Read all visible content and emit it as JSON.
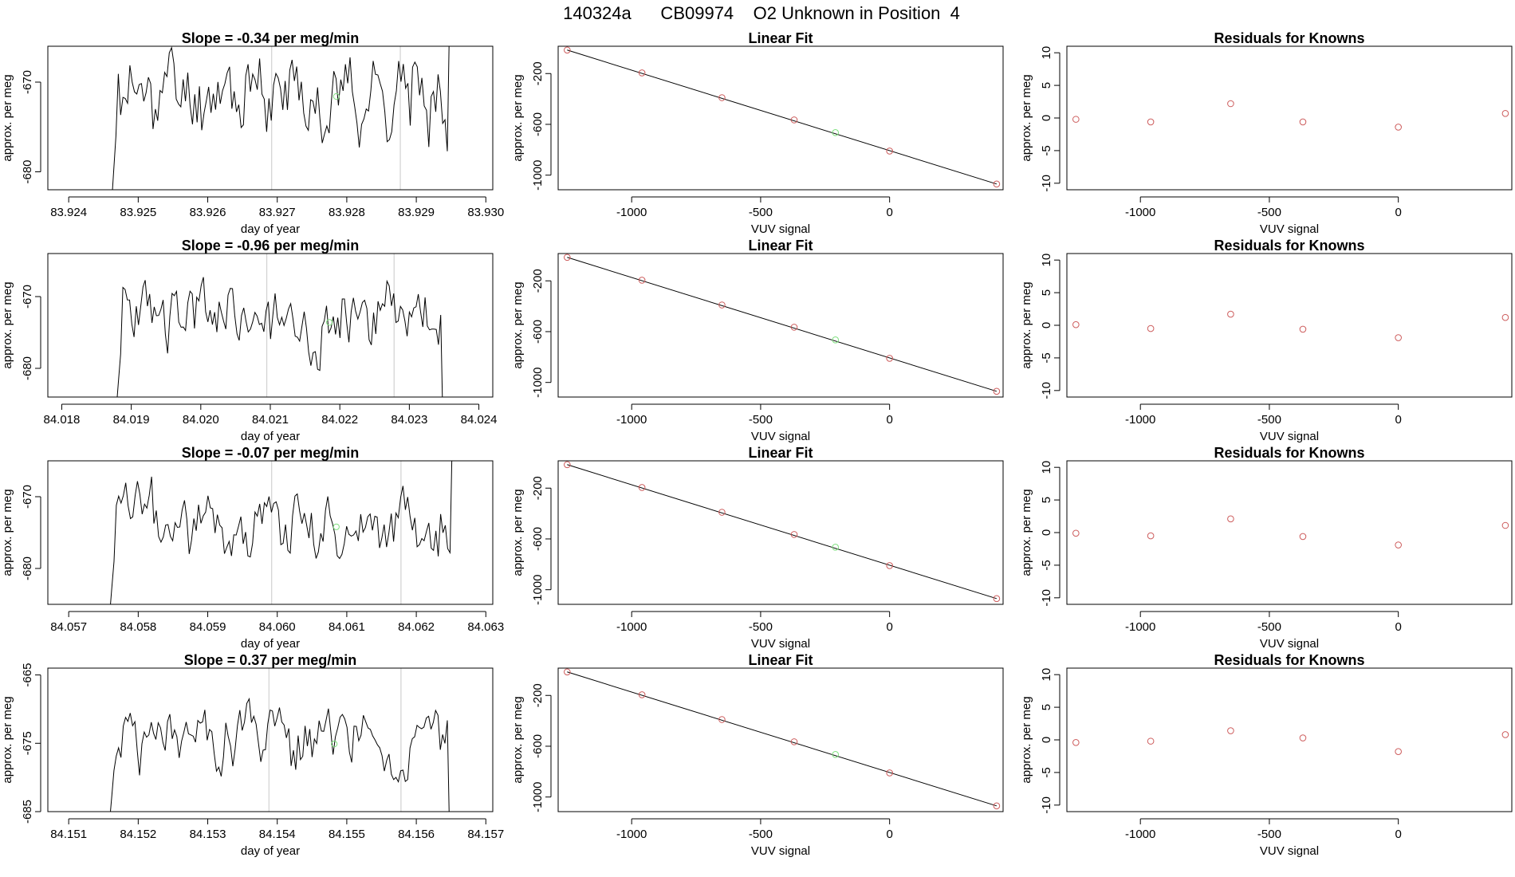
{
  "title": "140324a      CB09974    O2 Unknown in Position  4",
  "colors": {
    "line": "#000000",
    "known": "#cd5c5c",
    "unknown": "#7ee07e",
    "vline": "#c8c8c8",
    "frame": "#000000"
  },
  "chart_data": [
    {
      "type": "line",
      "title": "Slope =  -0.34  per meg/min",
      "xlabel": "day of year",
      "ylabel": "approx. per meg",
      "xlim": [
        83.9237,
        83.9301
      ],
      "ylim": [
        -682,
        -666
      ],
      "xticks": [
        "83.924",
        "83.925",
        "83.926",
        "83.927",
        "83.928",
        "83.929",
        "83.930"
      ],
      "yticks": [
        "-680",
        "-670"
      ],
      "vlines": [
        83.92692,
        83.92877
      ],
      "unknown_point": [
        83.92785,
        -671.6
      ],
      "series_range": [
        83.92458,
        83.92958
      ],
      "series_seed": 11,
      "series_mean": -671.3
    },
    {
      "type": "scatter",
      "title": "Linear Fit",
      "xlabel": "VUV signal",
      "ylabel": "approx. per meg",
      "xlim": [
        -1285,
        440
      ],
      "ylim": [
        -1115,
        15
      ],
      "xticks": [
        "-1000",
        "-500",
        "0"
      ],
      "yticks": [
        "-1000",
        "-600",
        "-200"
      ],
      "known_x": [
        -1250,
        -960,
        -650,
        -370,
        0,
        415
      ],
      "known_y": [
        -15,
        -195,
        -390,
        -565,
        -810,
        -1070
      ],
      "unknown": [
        -210,
        -665
      ],
      "fit_line": [
        [
          -1250,
          -15
        ],
        [
          415,
          -1070
        ]
      ]
    },
    {
      "type": "scatter",
      "title": "Residuals for Knowns",
      "xlabel": "VUV signal",
      "ylabel": "approx. per meg",
      "xlim": [
        -1285,
        440
      ],
      "ylim": [
        -11,
        11
      ],
      "xticks": [
        "-1000",
        "-500",
        "0"
      ],
      "yticks": [
        "-10",
        "-5",
        "0",
        "5",
        "10"
      ],
      "x": [
        -1250,
        -960,
        -650,
        -370,
        0,
        415
      ],
      "y": [
        -0.2,
        -0.6,
        2.2,
        -0.6,
        -1.4,
        0.7
      ]
    },
    {
      "type": "line",
      "title": "Slope =  -0.96  per meg/min",
      "xlabel": "day of year",
      "ylabel": "approx. per meg",
      "xlim": [
        84.0178,
        84.0242
      ],
      "ylim": [
        -684,
        -664
      ],
      "xticks": [
        "84.018",
        "84.019",
        "84.020",
        "84.021",
        "84.022",
        "84.023",
        "84.024"
      ],
      "yticks": [
        "-680",
        "-670"
      ],
      "vlines": [
        84.02095,
        84.02278
      ],
      "unknown_point": [
        84.02185,
        -673.6
      ],
      "series_range": [
        84.01875,
        84.02358
      ],
      "series_seed": 23,
      "series_mean": -672.8
    },
    {
      "type": "scatter",
      "title": "Linear Fit",
      "xlabel": "VUV signal",
      "ylabel": "approx. per meg",
      "xlim": [
        -1285,
        440
      ],
      "ylim": [
        -1115,
        15
      ],
      "xticks": [
        "-1000",
        "-500",
        "0"
      ],
      "yticks": [
        "-1000",
        "-600",
        "-200"
      ],
      "known_x": [
        -1250,
        -960,
        -650,
        -370,
        0,
        415
      ],
      "known_y": [
        -15,
        -195,
        -390,
        -565,
        -810,
        -1070
      ],
      "unknown": [
        -210,
        -665
      ],
      "fit_line": [
        [
          -1250,
          -15
        ],
        [
          415,
          -1070
        ]
      ]
    },
    {
      "type": "scatter",
      "title": "Residuals for Knowns",
      "xlabel": "VUV signal",
      "ylabel": "approx. per meg",
      "xlim": [
        -1285,
        440
      ],
      "ylim": [
        -11,
        11
      ],
      "xticks": [
        "-1000",
        "-500",
        "0"
      ],
      "yticks": [
        "-10",
        "-5",
        "0",
        "5",
        "10"
      ],
      "x": [
        -1250,
        -960,
        -650,
        -370,
        0,
        415
      ],
      "y": [
        0.1,
        -0.5,
        1.7,
        -0.6,
        -1.9,
        1.2
      ]
    },
    {
      "type": "line",
      "title": "Slope =  -0.07  per meg/min",
      "xlabel": "day of year",
      "ylabel": "approx. per meg",
      "xlim": [
        84.0567,
        84.0631
      ],
      "ylim": [
        -685,
        -665
      ],
      "xticks": [
        "84.057",
        "84.058",
        "84.059",
        "84.060",
        "84.061",
        "84.062",
        "84.063"
      ],
      "yticks": [
        "-680",
        "-670"
      ],
      "vlines": [
        84.05992,
        84.06178
      ],
      "unknown_point": [
        84.06085,
        -674.2
      ],
      "series_range": [
        84.05755,
        84.06262
      ],
      "series_seed": 37,
      "series_mean": -673.6
    },
    {
      "type": "scatter",
      "title": "Linear Fit",
      "xlabel": "VUV signal",
      "ylabel": "approx. per meg",
      "xlim": [
        -1285,
        440
      ],
      "ylim": [
        -1115,
        15
      ],
      "xticks": [
        "-1000",
        "-500",
        "0"
      ],
      "yticks": [
        "-1000",
        "-600",
        "-200"
      ],
      "known_x": [
        -1250,
        -960,
        -650,
        -370,
        0,
        415
      ],
      "known_y": [
        -15,
        -195,
        -390,
        -565,
        -810,
        -1070
      ],
      "unknown": [
        -210,
        -665
      ],
      "fit_line": [
        [
          -1250,
          -15
        ],
        [
          415,
          -1070
        ]
      ]
    },
    {
      "type": "scatter",
      "title": "Residuals for Knowns",
      "xlabel": "VUV signal",
      "ylabel": "approx. per meg",
      "xlim": [
        -1285,
        440
      ],
      "ylim": [
        -11,
        11
      ],
      "xticks": [
        "-1000",
        "-500",
        "0"
      ],
      "yticks": [
        "-10",
        "-5",
        "0",
        "5",
        "10"
      ],
      "x": [
        -1250,
        -960,
        -650,
        -370,
        0,
        415
      ],
      "y": [
        -0.1,
        -0.5,
        2.1,
        -0.6,
        -1.9,
        1.1
      ]
    },
    {
      "type": "line",
      "title": "Slope =  0.37  per meg/min",
      "xlabel": "day of year",
      "ylabel": "approx. per meg",
      "xlim": [
        84.1507,
        84.1571
      ],
      "ylim": [
        -685,
        -664
      ],
      "xticks": [
        "84.151",
        "84.152",
        "84.153",
        "84.154",
        "84.155",
        "84.156",
        "84.157"
      ],
      "yticks": [
        "-685",
        "-675",
        "-665"
      ],
      "vlines": [
        84.15388,
        84.15578
      ],
      "unknown_point": [
        84.15482,
        -675.1
      ],
      "series_range": [
        84.15155,
        84.15658
      ],
      "series_seed": 51,
      "series_mean": -674.6
    },
    {
      "type": "scatter",
      "title": "Linear Fit",
      "xlabel": "VUV signal",
      "ylabel": "approx. per meg",
      "xlim": [
        -1285,
        440
      ],
      "ylim": [
        -1115,
        15
      ],
      "xticks": [
        "-1000",
        "-500",
        "0"
      ],
      "yticks": [
        "-1000",
        "-600",
        "-200"
      ],
      "known_x": [
        -1250,
        -960,
        -650,
        -370,
        0,
        415
      ],
      "known_y": [
        -15,
        -195,
        -390,
        -565,
        -810,
        -1070
      ],
      "unknown": [
        -210,
        -665
      ],
      "fit_line": [
        [
          -1250,
          -15
        ],
        [
          415,
          -1070
        ]
      ]
    },
    {
      "type": "scatter",
      "title": "Residuals for Knowns",
      "xlabel": "VUV signal",
      "ylabel": "approx. per meg",
      "xlim": [
        -1285,
        440
      ],
      "ylim": [
        -11,
        11
      ],
      "xticks": [
        "-1000",
        "-500",
        "0"
      ],
      "yticks": [
        "-10",
        "-5",
        "0",
        "5",
        "10"
      ],
      "x": [
        -1250,
        -960,
        -650,
        -370,
        0,
        415
      ],
      "y": [
        -0.4,
        -0.2,
        1.4,
        0.3,
        -1.8,
        0.8
      ]
    }
  ]
}
